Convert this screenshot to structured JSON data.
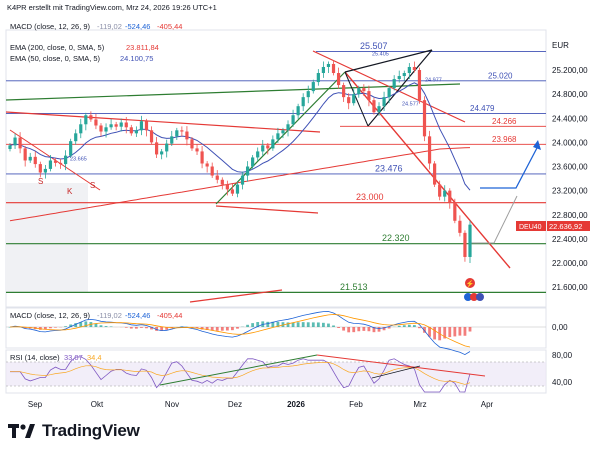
{
  "header": {
    "caption": "K4PR erstellt mit TradingView.com, Mrz 24, 2026 19:26 UTC+1",
    "macd_top": {
      "name": "MACD (close, 12, 26, 9)",
      "v1": "-119,02",
      "v2": "-524,46",
      "v3": "-405,44"
    }
  },
  "legend": {
    "ema200": {
      "name": "EMA (200, close, 0, SMA, 5)",
      "value": "23.811,84",
      "color": "#e53935"
    },
    "ema50": {
      "name": "EMA (50, close, 0, SMA, 5)",
      "value": "24.100,75",
      "color": "#3f51b5"
    }
  },
  "currency": "EUR",
  "symbol_tag": {
    "symbol": "DEU40",
    "price": "22.636,92",
    "color": "#e53935"
  },
  "levels": [
    {
      "label": "25.507",
      "value": 25507,
      "color": "#3f51b5"
    },
    {
      "label": "25.020",
      "value": 25020,
      "color": "#3f51b5"
    },
    {
      "label": "24.479",
      "value": 24479,
      "color": "#3f51b5"
    },
    {
      "label": "24.266",
      "value": 24266,
      "color": "#e53935"
    },
    {
      "label": "23.968",
      "value": 23968,
      "color": "#e53935"
    },
    {
      "label": "23.476",
      "value": 23476,
      "color": "#3f51b5"
    },
    {
      "label": "23.000",
      "value": 23000,
      "color": "#e53935"
    },
    {
      "label": "22.320",
      "value": 22320,
      "color": "#2e7d32"
    },
    {
      "label": "21.513",
      "value": 21513,
      "color": "#2e7d32"
    }
  ],
  "small_labels": [
    {
      "text": "25.405",
      "value": 25405
    },
    {
      "text": "24.977",
      "value": 24977
    },
    {
      "text": "24.577",
      "value": 24577
    },
    {
      "text": "23.665",
      "value": 23665
    }
  ],
  "pattern_marks": [
    "S",
    "S",
    "K"
  ],
  "chart_data": {
    "type": "candlestick",
    "price_axis": {
      "ticks": [
        "25.200,00",
        "24.800,00",
        "24.400,00",
        "24.000,00",
        "23.600,00",
        "23.200,00",
        "22.800,00",
        "22.400,00",
        "22.000,00",
        "21.600,00"
      ],
      "tick_values": [
        25200,
        24800,
        24400,
        24000,
        23600,
        23200,
        22800,
        22400,
        22000,
        21600
      ]
    },
    "time_axis": {
      "labels": [
        "Sep",
        "Okt",
        "Nov",
        "Dez",
        "2026",
        "Feb",
        "Mrz",
        "Apr"
      ]
    },
    "close_series": [
      23950,
      24080,
      23900,
      23700,
      23760,
      23640,
      23500,
      23560,
      23700,
      23660,
      23640,
      23780,
      24020,
      24150,
      24300,
      24450,
      24380,
      24280,
      24180,
      24250,
      24300,
      24260,
      24330,
      24250,
      24150,
      24200,
      24350,
      24200,
      24000,
      23800,
      23850,
      23980,
      24100,
      24200,
      24180,
      24050,
      23900,
      23850,
      23650,
      23600,
      23450,
      23380,
      23300,
      23220,
      23150,
      23300,
      23450,
      23600,
      23750,
      23850,
      23950,
      23900,
      24050,
      24150,
      24200,
      24300,
      24450,
      24600,
      24750,
      24850,
      25000,
      25150,
      25250,
      25300,
      25150,
      24950,
      24750,
      24650,
      24800,
      24900,
      24850,
      24700,
      24500,
      24600,
      24750,
      24900,
      25050,
      25100,
      25150,
      25250,
      25200,
      24700,
      24100,
      23650,
      23300,
      23100,
      23200,
      23000,
      22700,
      22500,
      22100,
      22636
    ],
    "macd": {
      "name": "MACD (close, 12, 26, 9)",
      "values": [
        "-119,02",
        "-524,46",
        "-405,44"
      ],
      "axis_ticks": [
        "0,00"
      ]
    },
    "rsi": {
      "name": "RSI (14, close)",
      "value": "33,07",
      "value2": "34,4",
      "axis_ticks": [
        "80,00",
        "40,00"
      ]
    }
  },
  "footer": {
    "brand": "TradingView"
  }
}
